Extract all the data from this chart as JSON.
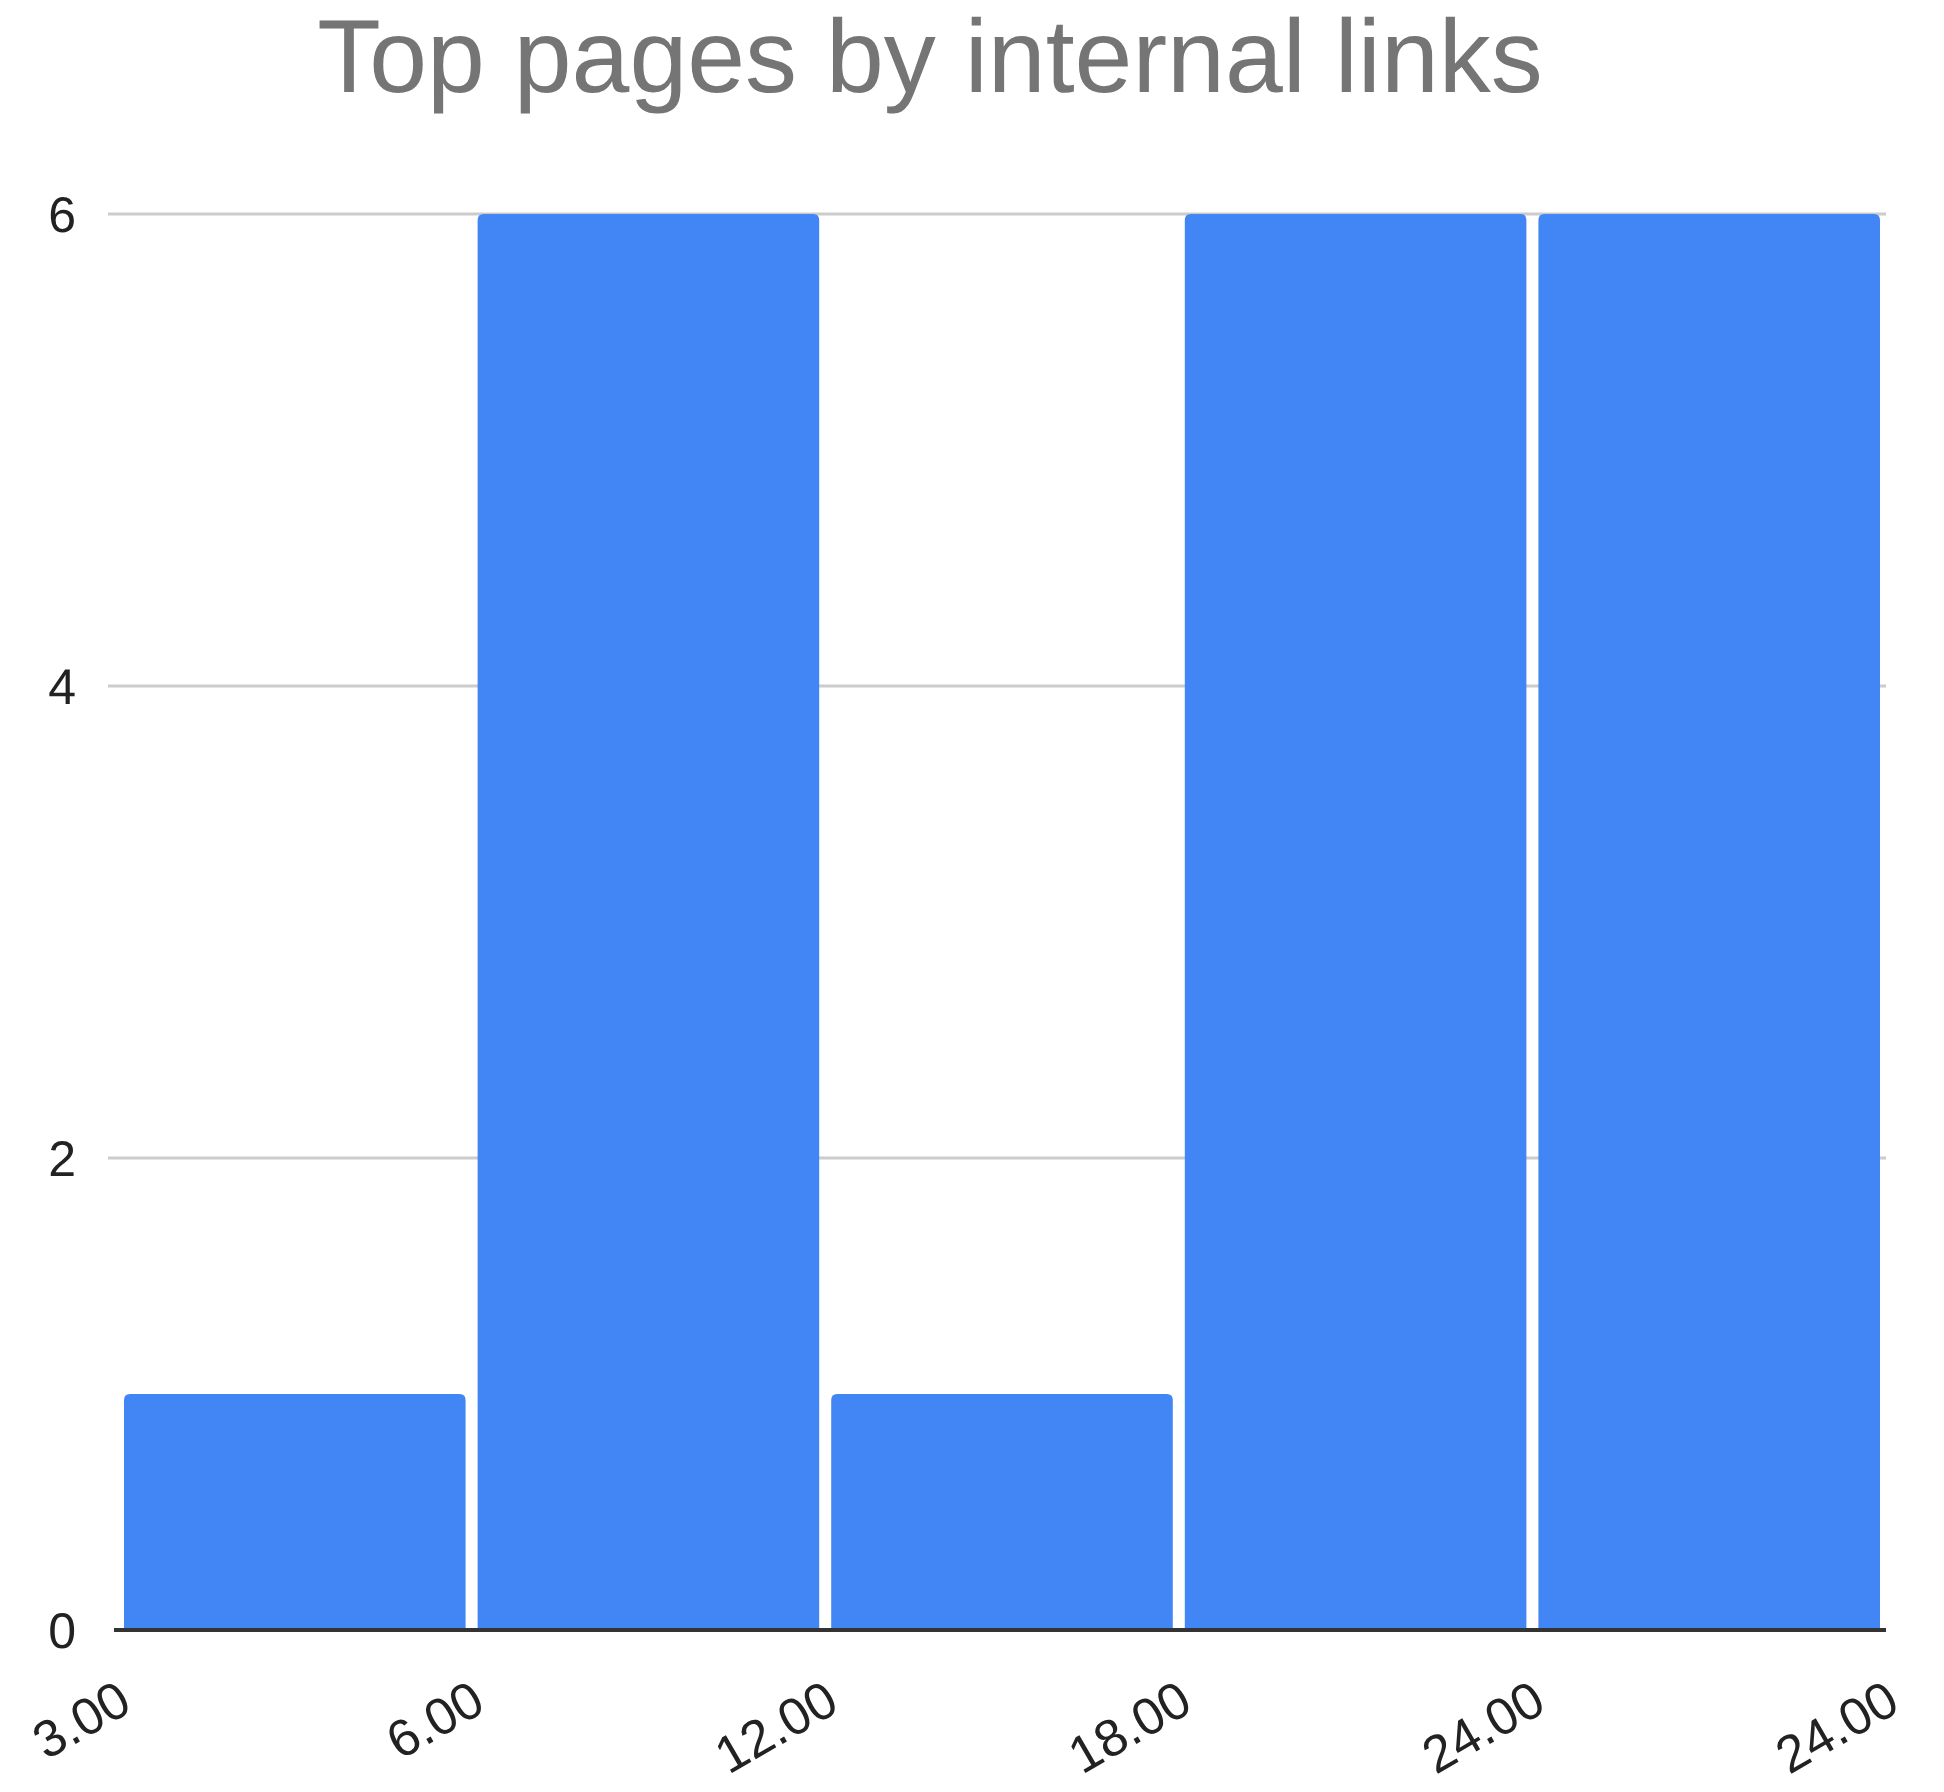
{
  "chart_data": {
    "type": "bar",
    "title": "Top pages by internal links",
    "categories": [
      null,
      null,
      null,
      null,
      null
    ],
    "values": [
      1,
      6,
      1,
      6,
      6
    ],
    "color": "#4285f4",
    "ylim": [
      0,
      6
    ],
    "yticks": [
      0,
      2,
      4,
      6
    ],
    "grid": "y",
    "annotations": [
      "3.00",
      "6.00",
      "12.00",
      "18.00",
      "24.00",
      "24.00"
    ]
  }
}
